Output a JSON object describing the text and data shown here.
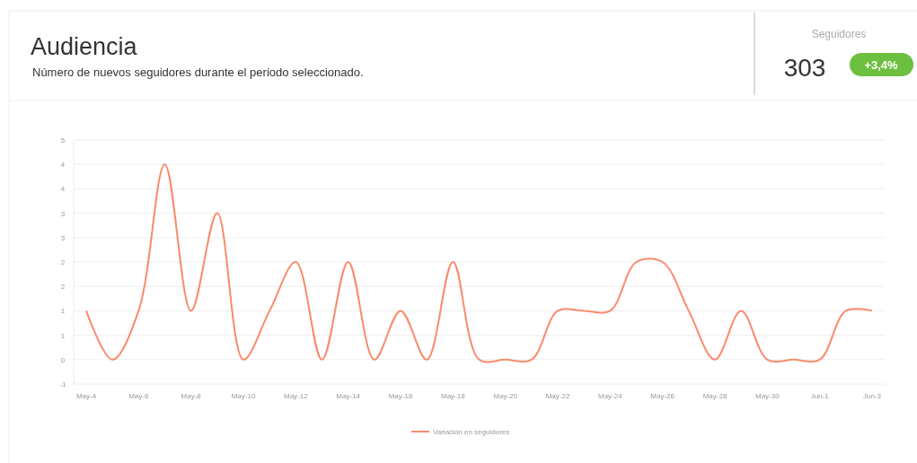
{
  "chart_data": {
    "type": "line",
    "title": "Audiencia",
    "subtitle": "Número de nuevos seguidores durante el periodo seleccionado.",
    "annotations": [
      "Seguidores",
      "303",
      "+3,4%"
    ],
    "categories": [
      "May-4",
      null,
      "May-6",
      null,
      "May-8",
      null,
      "May-10",
      null,
      "May-12",
      null,
      "May-14",
      null,
      "May-16",
      null,
      "May-18",
      null,
      "May-20",
      null,
      "May-22",
      null,
      "May-24",
      null,
      "May-26",
      null,
      "May-28",
      null,
      "May-30",
      null,
      "Jun-1",
      null,
      "Jun-3"
    ],
    "series": [
      {
        "name": "Variación en seguidores",
        "color": "#fa8a6c",
        "values": [
          1,
          0,
          1,
          4,
          1,
          3,
          0,
          1,
          2,
          0,
          2,
          0,
          1,
          0,
          2,
          0,
          0,
          0,
          1,
          1,
          1,
          2,
          2,
          1,
          0,
          1,
          0,
          0,
          0,
          1,
          1
        ]
      }
    ],
    "ylim": [
      -0.5,
      4.5
    ],
    "yticks": [
      {
        "value": -0.5,
        "label": "-1"
      },
      0,
      {
        "value": 0.5,
        "label": "1"
      },
      1,
      {
        "value": 1.5,
        "label": "2"
      },
      2,
      {
        "value": 2.5,
        "label": "3"
      },
      3,
      {
        "value": 3.5,
        "label": "4"
      },
      4,
      {
        "value": 4.5,
        "label": "5"
      }
    ],
    "grid": "y",
    "legend": "bottom",
    "marker": "none",
    "line_style": "solid"
  }
}
